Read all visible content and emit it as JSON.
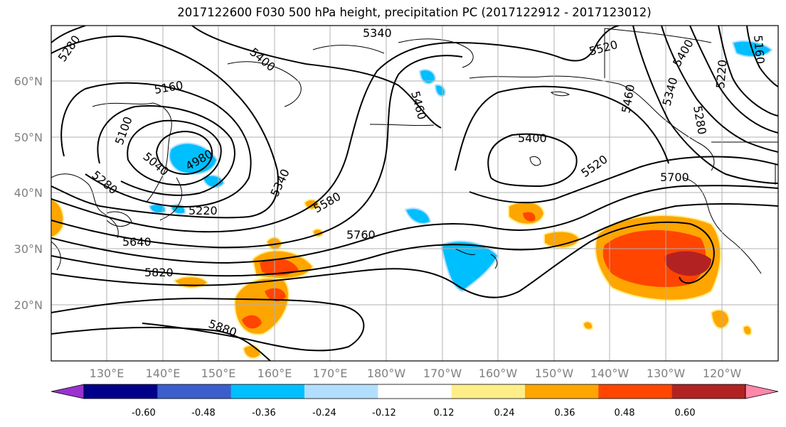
{
  "title": "2017122600 F030 500 hPa height, precipitation PC (2017122912 - 2017123012)",
  "lat_labels": [
    "60°N",
    "50°N",
    "40°N",
    "30°N",
    "20°N"
  ],
  "lon_labels": [
    "130°E",
    "140°E",
    "150°E",
    "160°E",
    "170°E",
    "180°W",
    "170°W",
    "160°W",
    "150°W",
    "140°W",
    "130°W",
    "120°W"
  ],
  "colorbar": {
    "colors": [
      "#9a32cd",
      "#00008b",
      "#3a5fcd",
      "#00bfff",
      "#b2dfff",
      "#ffffff",
      "#ffee88",
      "#ffa500",
      "#ff4500",
      "#b22222",
      "#ff88aa"
    ],
    "tick_labels": [
      "-0.60",
      "-0.48",
      "-0.36",
      "-0.24",
      "-0.12",
      "0.12",
      "0.24",
      "0.36",
      "0.48",
      "0.60"
    ]
  },
  "contour_labels": [
    "5280",
    "5340",
    "5400",
    "5460",
    "5520",
    "5160",
    "5100",
    "5040",
    "4980",
    "5280",
    "5220",
    "5340",
    "5580",
    "5760",
    "5640",
    "5820",
    "5880",
    "5400",
    "5520",
    "5700",
    "5460",
    "5400",
    "5340",
    "5280",
    "5220",
    "5160"
  ]
}
